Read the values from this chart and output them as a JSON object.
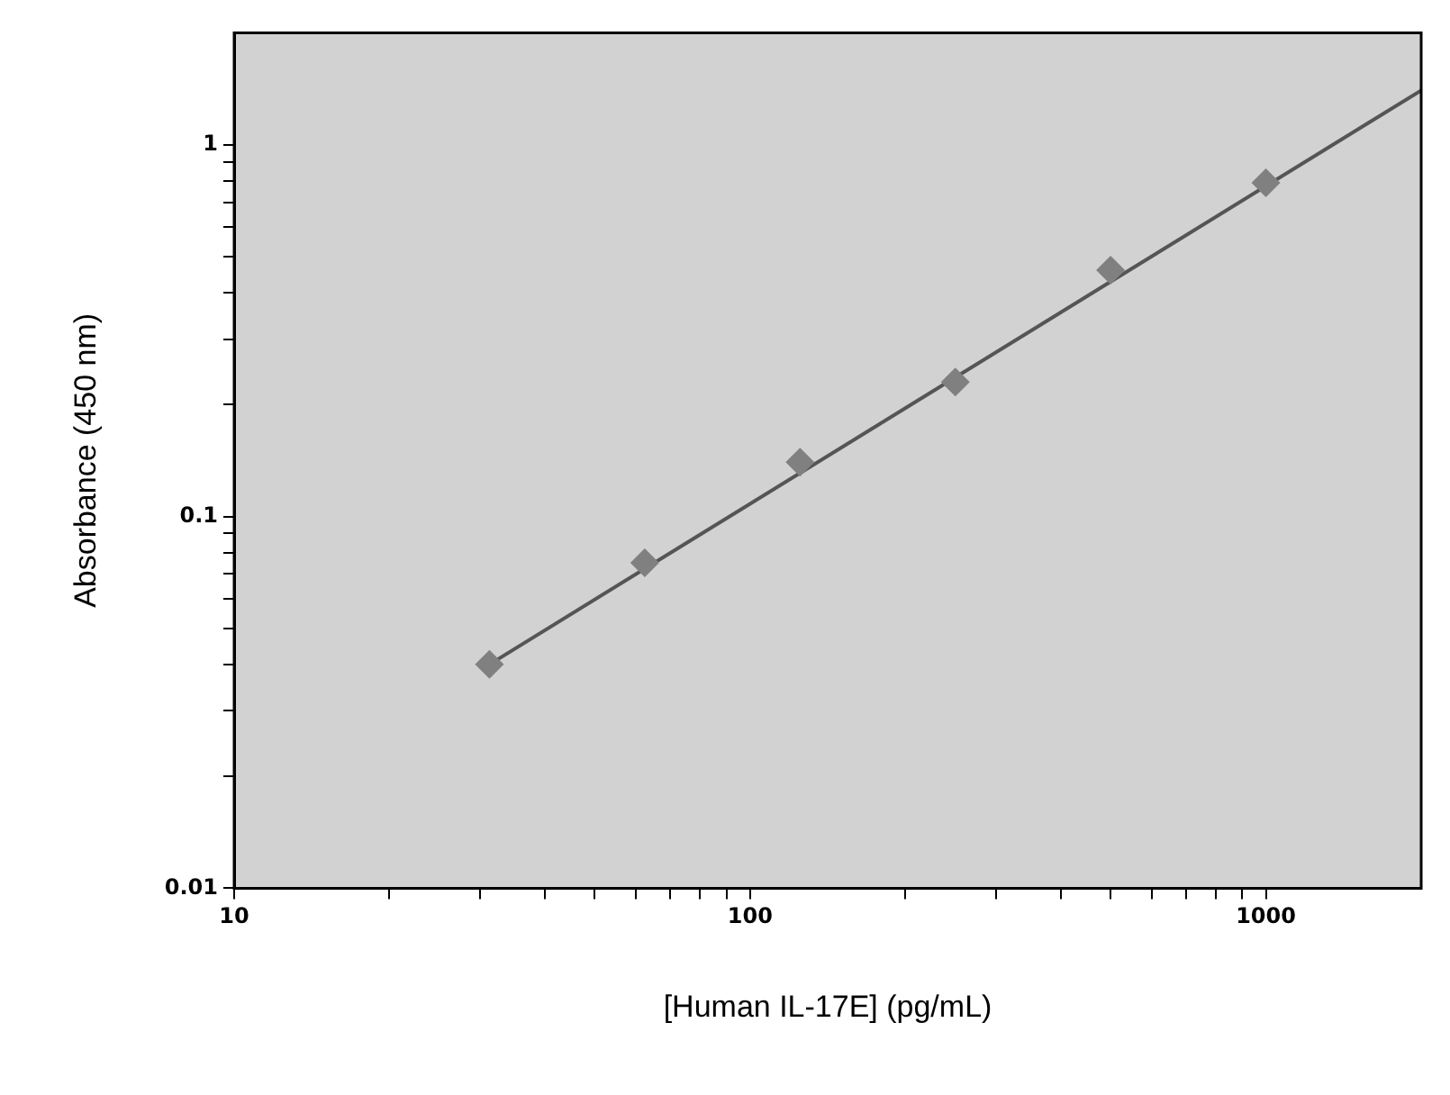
{
  "chart_data": {
    "type": "scatter",
    "xlabel": "[Human IL-17E] (pg/mL)",
    "ylabel": "Absorbance (450 nm)",
    "log": "xy",
    "xlim": [
      10,
      2000
    ],
    "ylim": [
      0.01,
      2
    ],
    "xticks": [
      10,
      {
        "value": 20,
        "label": null
      },
      {
        "value": 30,
        "label": null
      },
      {
        "value": 40,
        "label": null
      },
      {
        "value": 50,
        "label": null
      },
      {
        "value": 60,
        "label": null
      },
      {
        "value": 70,
        "label": null
      },
      {
        "value": 80,
        "label": null
      },
      {
        "value": 90,
        "label": null
      },
      100,
      {
        "value": 200,
        "label": null
      },
      {
        "value": 300,
        "label": null
      },
      {
        "value": 400,
        "label": null
      },
      {
        "value": 500,
        "label": null
      },
      {
        "value": 600,
        "label": null
      },
      {
        "value": 700,
        "label": null
      },
      {
        "value": 800,
        "label": null
      },
      {
        "value": 900,
        "label": null
      },
      1000
    ],
    "yticks": [
      0.01,
      {
        "value": 0.02,
        "label": null
      },
      {
        "value": 0.03,
        "label": null
      },
      {
        "value": 0.04,
        "label": null
      },
      {
        "value": 0.05,
        "label": null
      },
      {
        "value": 0.06,
        "label": null
      },
      {
        "value": 0.07,
        "label": null
      },
      {
        "value": 0.08,
        "label": null
      },
      {
        "value": 0.09,
        "label": null
      },
      0.1,
      {
        "value": 0.2,
        "label": null
      },
      {
        "value": 0.3,
        "label": null
      },
      {
        "value": 0.4,
        "label": null
      },
      {
        "value": 0.5,
        "label": null
      },
      {
        "value": 0.6,
        "label": null
      },
      {
        "value": 0.7,
        "label": null
      },
      {
        "value": 0.8,
        "label": null
      },
      {
        "value": 0.9,
        "label": null
      },
      1
    ],
    "series": [
      {
        "marker": "diamond",
        "color": "#808080",
        "x": [
          31.25,
          62.5,
          125,
          250,
          500,
          1000
        ],
        "values": [
          0.04,
          0.075,
          0.14,
          0.23,
          0.46,
          0.79
        ]
      },
      {
        "type": "line",
        "marker": "none",
        "color": "#555555",
        "x": [
          31.25,
          2000
        ],
        "values": [
          0.04,
          1.4
        ]
      }
    ]
  }
}
